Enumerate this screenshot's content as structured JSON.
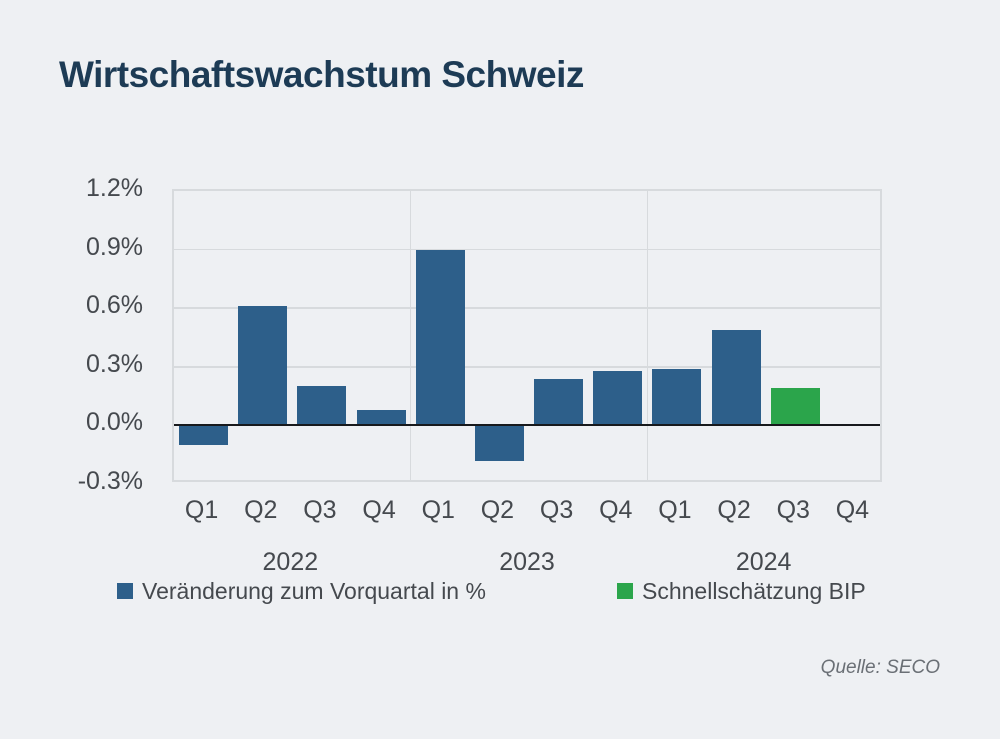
{
  "title": "Wirtschaftswachstum Schweiz",
  "source": "Quelle: SECO",
  "colors": {
    "background": "#eef0f3",
    "title_text": "#1d3b55",
    "axis_text": "#45494e",
    "grid": "#d7dadd",
    "zero_line": "#17191c",
    "bar_blue": "#2d5f8a",
    "bar_green": "#2ba54b",
    "source_text": "#6a6f75"
  },
  "legend": {
    "items": [
      {
        "label": "Veränderung zum Vorquartal in %",
        "color": "#2d5f8a"
      },
      {
        "label": "Schnellschätzung BIP",
        "color": "#2ba54b"
      }
    ]
  },
  "chart_data": {
    "type": "bar",
    "title": "Wirtschaftswachstum Schweiz",
    "ylabel": "",
    "xlabel": "",
    "grid": true,
    "legend_position": "bottom",
    "ylim": [
      -0.3,
      1.2
    ],
    "y_ticks": [
      {
        "value": 1.2,
        "label": "1.2%"
      },
      {
        "value": 0.9,
        "label": "0.9%"
      },
      {
        "value": 0.6,
        "label": "0.6%"
      },
      {
        "value": 0.3,
        "label": "0.3%"
      },
      {
        "value": 0.0,
        "label": "0.0%"
      },
      {
        "value": -0.3,
        "label": "-0.3%"
      }
    ],
    "categories": [
      "Q1",
      "Q2",
      "Q3",
      "Q4",
      "Q1",
      "Q2",
      "Q3",
      "Q4",
      "Q1",
      "Q2",
      "Q3",
      "Q4"
    ],
    "year_groups": [
      {
        "label": "2022",
        "quarters": 4
      },
      {
        "label": "2023",
        "quarters": 4
      },
      {
        "label": "2024",
        "quarters": 4
      }
    ],
    "series": [
      {
        "name": "Veränderung zum Vorquartal in %",
        "color": "#2d5f8a",
        "values": [
          -0.1,
          0.61,
          0.2,
          0.08,
          0.9,
          -0.18,
          0.24,
          0.28,
          0.29,
          0.49,
          null,
          null
        ]
      },
      {
        "name": "Schnellschätzung BIP",
        "color": "#2ba54b",
        "values": [
          null,
          null,
          null,
          null,
          null,
          null,
          null,
          null,
          null,
          null,
          0.19,
          null
        ]
      }
    ]
  }
}
